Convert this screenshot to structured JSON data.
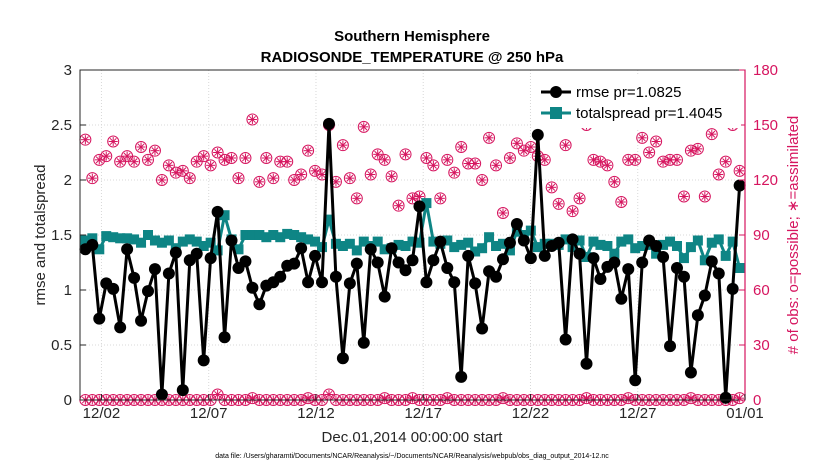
{
  "chart_data": {
    "type": "line",
    "title": "Southern Hemisphere",
    "subtitle": "RADIOSONDE_TEMPERATURE @ 250 hPa",
    "xlabel": "Dec.01,2014 00:00:00 start",
    "ylabel": "rmse and totalspread",
    "ylabel_right": "# of obs: o=possible; ∗=assimilated",
    "ylim": [
      0,
      3
    ],
    "ylim_right": [
      0,
      180
    ],
    "yticks": [
      "0",
      "0.5",
      "1",
      "1.5",
      "2",
      "2.5",
      "3"
    ],
    "yticks_right": [
      "0",
      "30",
      "60",
      "90",
      "120",
      "150",
      "180"
    ],
    "xlim": [
      0,
      31
    ],
    "xticks": [
      {
        "pos": 1,
        "label": "12/02"
      },
      {
        "pos": 6,
        "label": "12/07"
      },
      {
        "pos": 11,
        "label": "12/12"
      },
      {
        "pos": 16,
        "label": "12/17"
      },
      {
        "pos": 21,
        "label": "12/22"
      },
      {
        "pos": 26,
        "label": "12/27"
      },
      {
        "pos": 31,
        "label": "01/01"
      }
    ],
    "grid": true,
    "legend_position": "top-right",
    "footnote": "data file: /Users/gharamti/Documents/NCAR/Reanalysis/~/Documents/NCAR/Reanalysis/webpub/obs_diag_output_2014-12.nc",
    "colors": {
      "rmse": "#000000",
      "spread": "#0e8585",
      "obs": "#d6155f"
    },
    "series": [
      {
        "name": "rmse pr=1.0825",
        "axis": "left",
        "values": [
          1.37,
          1.41,
          0.74,
          1.06,
          1.01,
          0.66,
          1.37,
          1.11,
          0.72,
          0.99,
          1.19,
          0.05,
          1.15,
          1.34,
          0.09,
          1.27,
          1.33,
          0.36,
          1.29,
          1.71,
          0.57,
          1.45,
          1.2,
          1.26,
          1.02,
          0.87,
          1.04,
          1.07,
          1.12,
          1.22,
          1.24,
          1.38,
          1.07,
          1.31,
          1.07,
          2.51,
          1.12,
          0.38,
          1.06,
          1.24,
          0.52,
          1.37,
          1.25,
          0.94,
          1.38,
          1.25,
          1.18,
          1.27,
          1.76,
          1.07,
          1.27,
          1.44,
          1.2,
          1.07,
          0.21,
          1.31,
          1.06,
          0.65,
          1.17,
          1.12,
          1.28,
          1.43,
          1.6,
          1.45,
          1.29,
          2.41,
          1.31,
          1.4,
          1.43,
          0.55,
          1.46,
          1.33,
          0.33,
          1.29,
          1.1,
          1.21,
          1.25,
          0.92,
          1.19,
          0.18,
          1.25,
          1.45,
          1.4,
          1.3,
          0.49,
          1.2,
          1.12,
          0.25,
          0.77,
          0.95,
          1.26,
          1.15,
          0.02,
          1.01,
          1.95
        ]
      },
      {
        "name": "totalspread pr=1.4045",
        "axis": "left",
        "values": [
          1.45,
          1.47,
          1.37,
          1.49,
          1.48,
          1.47,
          1.47,
          1.46,
          1.43,
          1.5,
          1.45,
          1.43,
          1.45,
          1.38,
          1.44,
          1.46,
          1.44,
          1.4,
          1.43,
          1.36,
          1.68,
          1.46,
          1.37,
          1.5,
          1.5,
          1.5,
          1.48,
          1.5,
          1.48,
          1.51,
          1.5,
          1.48,
          1.46,
          1.44,
          1.39,
          1.64,
          1.42,
          1.4,
          1.42,
          1.36,
          1.44,
          1.4,
          1.44,
          1.37,
          1.38,
          1.41,
          1.4,
          1.44,
          1.43,
          1.79,
          1.44,
          1.42,
          1.45,
          1.39,
          1.41,
          1.43,
          1.35,
          1.38,
          1.48,
          1.4,
          1.42,
          1.36,
          1.53,
          1.5,
          1.54,
          1.39,
          1.42,
          1.42,
          1.41,
          1.46,
          1.39,
          1.45,
          1.3,
          1.44,
          1.41,
          1.4,
          1.33,
          1.44,
          1.46,
          1.38,
          1.4,
          1.41,
          1.33,
          1.41,
          1.44,
          1.4,
          1.29,
          1.39,
          1.45,
          1.27,
          1.43,
          1.46,
          1.31,
          1.44,
          1.2
        ]
      },
      {
        "name": "obs possible",
        "axis": "right",
        "marker": "circle",
        "values": [
          142,
          121,
          131,
          133,
          141,
          130,
          133,
          130,
          138,
          131,
          136,
          120,
          128,
          124,
          125,
          121,
          130,
          133,
          128,
          135,
          131,
          132,
          121,
          132,
          153,
          119,
          132,
          121,
          130,
          130,
          120,
          123,
          136,
          125,
          123,
          150,
          119,
          139,
          121,
          110,
          149,
          123,
          134,
          131,
          122,
          106,
          134,
          110,
          111,
          132,
          128,
          110,
          131,
          124,
          138,
          129,
          129,
          120,
          143,
          128,
          102,
          132,
          140,
          136,
          138,
          133,
          131,
          116,
          107,
          139,
          103,
          110,
          150,
          131,
          130,
          128,
          119,
          108,
          131,
          131,
          143,
          135,
          141,
          130,
          131,
          131,
          111,
          136,
          137,
          111,
          145,
          123,
          130,
          150,
          125
        ],
        "low_values": [
          0,
          0,
          0,
          0,
          0,
          0,
          0,
          0,
          0,
          0,
          0,
          0,
          0,
          0,
          0,
          0,
          0,
          0,
          0,
          3,
          0,
          0,
          0,
          0,
          1,
          0,
          0,
          0,
          0,
          0,
          0,
          0,
          1,
          0,
          0,
          3,
          0,
          0,
          0,
          0,
          0,
          0,
          0,
          1,
          0,
          0,
          0,
          1,
          0,
          0,
          0,
          0,
          1,
          0,
          0,
          0,
          0,
          0,
          0,
          0,
          1,
          0,
          0,
          0,
          0,
          0,
          0,
          0,
          0,
          0,
          0,
          0,
          1,
          0,
          0,
          0,
          0,
          0,
          1,
          0,
          0,
          0,
          0,
          0,
          0,
          0,
          0,
          1,
          0,
          0,
          0,
          0,
          0,
          0,
          1
        ]
      }
    ]
  }
}
